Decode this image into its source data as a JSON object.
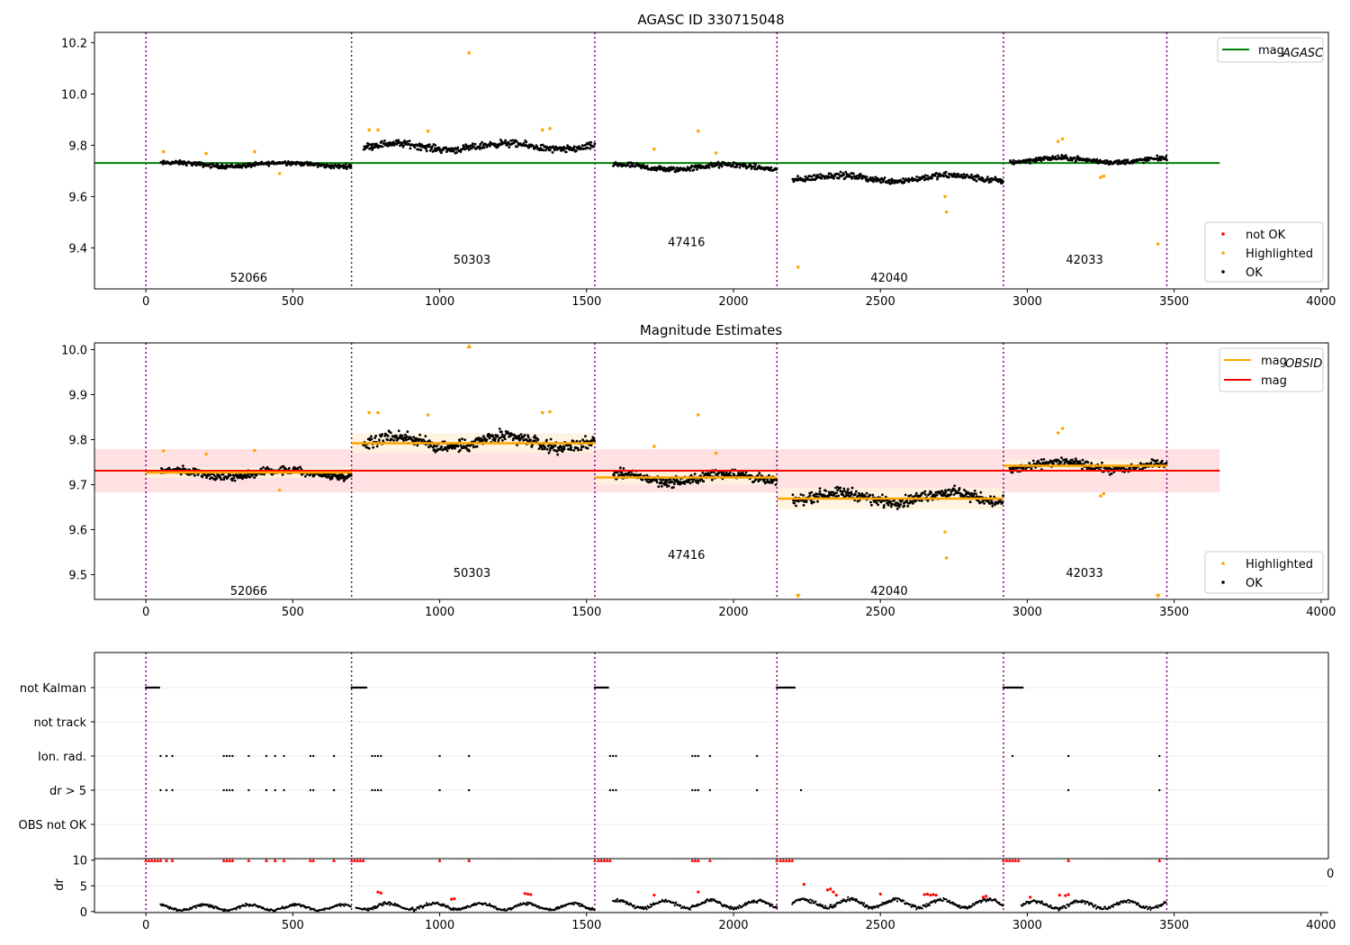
{
  "chart_data": [
    {
      "type": "scatter",
      "title": "AGASC ID 330715048",
      "xlabel": "",
      "ylabel": "",
      "xlim": [
        -175,
        4025
      ],
      "ylim": [
        9.24,
        10.24
      ],
      "x_ticks": [
        "0",
        "500",
        "1000",
        "1500",
        "2000",
        "2500",
        "3000",
        "3500",
        "4000"
      ],
      "y_ticks": [
        "9.4",
        "9.6",
        "9.8",
        "10.0",
        "10.2"
      ],
      "obs_boundaries": [
        0,
        700,
        1528,
        2148,
        2919,
        3475
      ],
      "obs_labels": [
        {
          "text": "52066",
          "x": 350,
          "y": 9.285
        },
        {
          "text": "50303",
          "x": 1110,
          "y": 9.355
        },
        {
          "text": "47416",
          "x": 1840,
          "y": 9.425
        },
        {
          "text": "42040",
          "x": 2530,
          "y": 9.285
        },
        {
          "text": "42033",
          "x": 3195,
          "y": 9.355
        }
      ],
      "segments": [
        {
          "x_start": 50,
          "x_end": 700,
          "level": 9.725,
          "spread": 0.012
        },
        {
          "x_start": 740,
          "x_end": 1528,
          "level": 9.795,
          "spread": 0.02
        },
        {
          "x_start": 1590,
          "x_end": 2148,
          "level": 9.715,
          "spread": 0.016
        },
        {
          "x_start": 2200,
          "x_end": 2919,
          "level": 9.672,
          "spread": 0.018
        },
        {
          "x_start": 2940,
          "x_end": 3475,
          "level": 9.742,
          "spread": 0.014
        }
      ],
      "series": [
        {
          "name": "mag_AGASC",
          "type": "line",
          "x": [
            -175,
            3655
          ],
          "y": [
            9.731,
            9.731
          ],
          "color": "#008000"
        },
        {
          "name": "not OK",
          "type": "scatter",
          "color": "#ff0000",
          "points": []
        },
        {
          "name": "Highlighted",
          "type": "scatter",
          "color": "#ffa500",
          "points": [
            [
              60,
              9.775
            ],
            [
              205,
              9.768
            ],
            [
              370,
              9.775
            ],
            [
              455,
              9.69
            ],
            [
              760,
              9.86
            ],
            [
              790,
              9.86
            ],
            [
              960,
              9.855
            ],
            [
              1100,
              10.16
            ],
            [
              1350,
              9.86
            ],
            [
              1375,
              9.865
            ],
            [
              1730,
              9.785
            ],
            [
              1880,
              9.855
            ],
            [
              1940,
              9.77
            ],
            [
              2220,
              9.325
            ],
            [
              2720,
              9.6
            ],
            [
              2725,
              9.54
            ],
            [
              3105,
              9.815
            ],
            [
              3120,
              9.825
            ],
            [
              3250,
              9.675
            ],
            [
              3260,
              9.68
            ],
            [
              3445,
              9.415
            ]
          ]
        },
        {
          "name": "OK",
          "type": "scatter",
          "color": "#000000",
          "points": []
        }
      ],
      "legend_upper": "top-right",
      "legend_lower": "bottom-right"
    },
    {
      "type": "scatter",
      "title": "Magnitude Estimates",
      "xlabel": "",
      "ylabel": "",
      "xlim": [
        -175,
        4025
      ],
      "ylim": [
        9.445,
        10.015
      ],
      "x_ticks": [
        "0",
        "500",
        "1000",
        "1500",
        "2000",
        "2500",
        "3000",
        "3500",
        "4000"
      ],
      "y_ticks": [
        "9.5",
        "9.6",
        "9.7",
        "9.8",
        "9.9",
        "10.0"
      ],
      "obs_boundaries": [
        0,
        700,
        1528,
        2148,
        2919,
        3475
      ],
      "obs_labels": [
        {
          "text": "52066",
          "x": 350,
          "y": 9.465
        },
        {
          "text": "50303",
          "x": 1110,
          "y": 9.505
        },
        {
          "text": "47416",
          "x": 1840,
          "y": 9.545
        },
        {
          "text": "42040",
          "x": 2530,
          "y": 9.465
        },
        {
          "text": "42033",
          "x": 3195,
          "y": 9.505
        }
      ],
      "mag": 9.731,
      "mag_band": [
        9.683,
        9.779
      ],
      "obsid_means": [
        {
          "x_start": 0,
          "x_end": 700,
          "mean": 9.727,
          "band": [
            9.715,
            9.739
          ]
        },
        {
          "x_start": 700,
          "x_end": 1528,
          "mean": 9.792,
          "band": [
            9.77,
            9.814
          ]
        },
        {
          "x_start": 1528,
          "x_end": 2148,
          "mean": 9.716,
          "band": [
            9.7,
            9.732
          ]
        },
        {
          "x_start": 2148,
          "x_end": 2919,
          "mean": 9.669,
          "band": [
            9.645,
            9.693
          ]
        },
        {
          "x_start": 2919,
          "x_end": 3475,
          "mean": 9.742,
          "band": [
            9.728,
            9.756
          ]
        }
      ],
      "series": [
        {
          "name": "mag_OBSID",
          "type": "line",
          "color": "#ffa500"
        },
        {
          "name": "mag",
          "type": "line",
          "color": "#ff0000"
        },
        {
          "name": "Highlighted",
          "type": "scatter",
          "color": "#ffa500",
          "points": [
            [
              60,
              9.775
            ],
            [
              205,
              9.768
            ],
            [
              370,
              9.776
            ],
            [
              455,
              9.688
            ],
            [
              760,
              9.86
            ],
            [
              790,
              9.86
            ],
            [
              960,
              9.855
            ],
            [
              1100,
              10.008
            ],
            [
              1350,
              9.86
            ],
            [
              1375,
              9.862
            ],
            [
              1730,
              9.785
            ],
            [
              1880,
              9.855
            ],
            [
              1940,
              9.77
            ],
            [
              2220,
              9.452
            ],
            [
              2720,
              9.595
            ],
            [
              2725,
              9.537
            ],
            [
              3105,
              9.815
            ],
            [
              3120,
              9.825
            ],
            [
              3250,
              9.675
            ],
            [
              3260,
              9.68
            ],
            [
              3445,
              9.452
            ]
          ]
        },
        {
          "name": "OK",
          "type": "scatter",
          "color": "#000000",
          "points": []
        }
      ],
      "legend_upper": "top-right",
      "legend_lower": "bottom-right"
    },
    {
      "type": "scatter",
      "title": "",
      "xlim": [
        -175,
        4025
      ],
      "categories": [
        "not Kalman",
        "not track",
        "Ion. rad.",
        "dr > 5",
        "OBS not OK"
      ],
      "obs_boundaries": [
        0,
        700,
        1528,
        2148,
        2919,
        3475
      ],
      "flags": {
        "not Kalman": [
          [
            0,
            45
          ],
          [
            700,
            750
          ],
          [
            1528,
            1575
          ],
          [
            2148,
            2210
          ],
          [
            2919,
            2985
          ]
        ],
        "not track": [],
        "Ion. rad.": [
          50,
          70,
          90,
          265,
          275,
          285,
          295,
          350,
          410,
          440,
          470,
          560,
          570,
          640,
          770,
          780,
          790,
          800,
          1000,
          1100,
          1580,
          1590,
          1600,
          1860,
          1870,
          1880,
          1920,
          2080,
          2950,
          3140,
          3450
        ],
        "dr > 5": [
          50,
          70,
          90,
          265,
          275,
          285,
          295,
          350,
          410,
          440,
          470,
          560,
          570,
          640,
          770,
          780,
          790,
          800,
          1000,
          1100,
          1580,
          1590,
          1600,
          1860,
          1870,
          1880,
          1920,
          2080,
          2230,
          3140,
          3450
        ],
        "OBS not OK": []
      }
    },
    {
      "type": "scatter",
      "title": "",
      "xlim": [
        -175,
        4025
      ],
      "ylim": [
        -0.2,
        10.3
      ],
      "ylabel": "dr",
      "y_ticks": [
        "0",
        "5",
        "10"
      ],
      "x_ticks": [
        "0",
        "500",
        "1000",
        "1500",
        "2000",
        "2500",
        "3000",
        "3500",
        "4000"
      ],
      "clipped_tick_fragment": "0",
      "obs_boundaries": [
        0,
        700,
        1528,
        2148,
        2919,
        3475
      ],
      "capped_points": [
        [
          0,
          10
        ],
        [
          10,
          10
        ],
        [
          20,
          10
        ],
        [
          30,
          10
        ],
        [
          40,
          10
        ],
        [
          50,
          10
        ],
        [
          70,
          10
        ],
        [
          90,
          10
        ],
        [
          265,
          10
        ],
        [
          275,
          10
        ],
        [
          285,
          10
        ],
        [
          295,
          10
        ],
        [
          350,
          10
        ],
        [
          410,
          10
        ],
        [
          440,
          10
        ],
        [
          470,
          10
        ],
        [
          560,
          10
        ],
        [
          570,
          10
        ],
        [
          640,
          10
        ],
        [
          700,
          10
        ],
        [
          710,
          10
        ],
        [
          720,
          10
        ],
        [
          730,
          10
        ],
        [
          740,
          10
        ],
        [
          1000,
          10
        ],
        [
          1100,
          10
        ],
        [
          1528,
          10
        ],
        [
          1540,
          10
        ],
        [
          1550,
          10
        ],
        [
          1560,
          10
        ],
        [
          1570,
          10
        ],
        [
          1580,
          10
        ],
        [
          1860,
          10
        ],
        [
          1870,
          10
        ],
        [
          1880,
          10
        ],
        [
          1920,
          10
        ],
        [
          2148,
          10
        ],
        [
          2160,
          10
        ],
        [
          2170,
          10
        ],
        [
          2180,
          10
        ],
        [
          2190,
          10
        ],
        [
          2200,
          10
        ],
        [
          2919,
          10
        ],
        [
          2930,
          10
        ],
        [
          2940,
          10
        ],
        [
          2950,
          10
        ],
        [
          2960,
          10
        ],
        [
          2970,
          10
        ],
        [
          3140,
          10
        ],
        [
          3450,
          10
        ]
      ],
      "red_points": [
        [
          790,
          3.8
        ],
        [
          800,
          3.6
        ],
        [
          1040,
          2.4
        ],
        [
          1050,
          2.5
        ],
        [
          1290,
          3.5
        ],
        [
          1300,
          3.4
        ],
        [
          1310,
          3.3
        ],
        [
          1730,
          3.2
        ],
        [
          1880,
          3.8
        ],
        [
          2240,
          5.3
        ],
        [
          2320,
          4.2
        ],
        [
          2330,
          4.4
        ],
        [
          2340,
          3.8
        ],
        [
          2350,
          3.2
        ],
        [
          2500,
          3.4
        ],
        [
          2650,
          3.3
        ],
        [
          2660,
          3.4
        ],
        [
          2670,
          3.2
        ],
        [
          2680,
          3.3
        ],
        [
          2690,
          3.2
        ],
        [
          2850,
          2.8
        ],
        [
          2860,
          3.0
        ],
        [
          3010,
          2.8
        ],
        [
          3110,
          3.2
        ],
        [
          3130,
          3.1
        ],
        [
          3140,
          3.3
        ]
      ],
      "ok_segments": [
        {
          "x_start": 50,
          "x_end": 700,
          "level": 0.8,
          "spread": 0.9
        },
        {
          "x_start": 715,
          "x_end": 1528,
          "level": 1.0,
          "spread": 1.0
        },
        {
          "x_start": 1590,
          "x_end": 2148,
          "level": 1.4,
          "spread": 1.2
        },
        {
          "x_start": 2200,
          "x_end": 2919,
          "level": 1.6,
          "spread": 1.3
        },
        {
          "x_start": 2980,
          "x_end": 3475,
          "level": 1.3,
          "spread": 1.2
        }
      ]
    }
  ],
  "legends": {
    "panel1_upper": [
      {
        "label": "mag",
        "sub": "AGASC",
        "color": "#008000"
      }
    ],
    "panel1_lower": [
      {
        "label": "not OK",
        "color": "#ff0000"
      },
      {
        "label": "Highlighted",
        "color": "#ffa500"
      },
      {
        "label": "OK",
        "color": "#000000"
      }
    ],
    "panel2_upper": [
      {
        "label": "mag",
        "sub": "OBSID",
        "color": "#ffa500"
      },
      {
        "label": "mag",
        "sub": "",
        "color": "#ff0000"
      }
    ],
    "panel2_lower": [
      {
        "label": "Highlighted",
        "color": "#ffa500"
      },
      {
        "label": "OK",
        "color": "#000000"
      }
    ]
  },
  "colors": {
    "boundary": "#800080",
    "mag_band": "#ffe0e3",
    "obsid_band": "#fff1dc",
    "grid": "#b0b0b0"
  }
}
